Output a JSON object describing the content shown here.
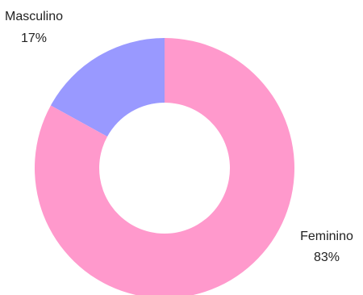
{
  "chart_data": {
    "type": "pie",
    "variant": "donut",
    "title": "",
    "legend": "none",
    "slices": [
      {
        "label": "Masculino",
        "value": 17,
        "value_text": "17%",
        "color": "#9999ff"
      },
      {
        "label": "Feminino",
        "value": 83,
        "value_text": "83%",
        "color": "#ff99cc"
      }
    ]
  }
}
